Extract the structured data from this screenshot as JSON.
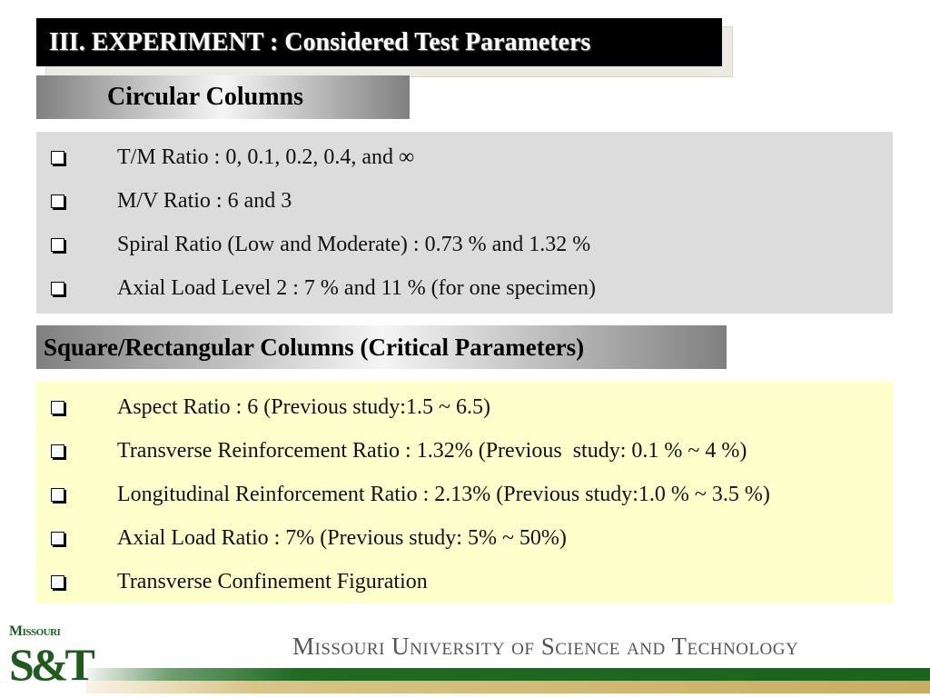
{
  "title": "III. EXPERIMENT : Considered Test Parameters",
  "circular": {
    "heading": "Circular Columns",
    "items": [
      "T/M Ratio : 0, 0.1, 0.2, 0.4, and ∞",
      "M/V Ratio : 6 and 3",
      "Spiral Ratio (Low and Moderate) : 0.73 % and 1.32 %",
      "Axial Load Level 2 : 7 % and 11 % (for one specimen)"
    ],
    "bg_color": "#dcdcdc"
  },
  "square": {
    "heading": "Square/Rectangular Columns (Critical Parameters)",
    "items": [
      "Aspect Ratio : 6 (Previous study:1.5 ~ 6.5)",
      "Transverse Reinforcement Ratio : 1.32% (Previous  study: 0.1 % ~ 4 %)",
      "Longitudinal Reinforcement Ratio : 2.13% (Previous study:1.0 % ~ 3.5 %)",
      "Axial Load Ratio : 7% (Previous study: 5% ~ 50%)",
      "Transverse Confinement Figuration"
    ],
    "bg_color": "#ffffcc"
  },
  "footer": {
    "logo_top": "Missouri",
    "logo_main": "S&T",
    "university": "Missouri University of Science and Technology",
    "brand_green": "#1a641d",
    "brand_gold": "#c8ad62"
  }
}
